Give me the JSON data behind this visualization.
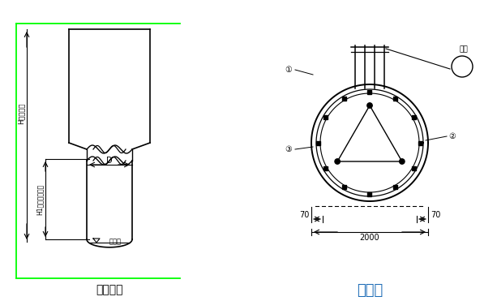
{
  "bg_color": "#ffffff",
  "line_color": "#000000",
  "green_color": "#00ff00",
  "blue_color": "#1a6ab5",
  "title_left": "桩身大样",
  "title_right": "桩截面",
  "label_H": "H（桩长）",
  "label_H1": "H1（入岩深度）",
  "label_D": "D",
  "label_chili": "持力层",
  "label_hanjie": "焊接",
  "dim_70_left": "70",
  "dim_70_right": "70",
  "dim_2000": "2000",
  "label_1": "①",
  "label_2": "②",
  "label_3": "③"
}
